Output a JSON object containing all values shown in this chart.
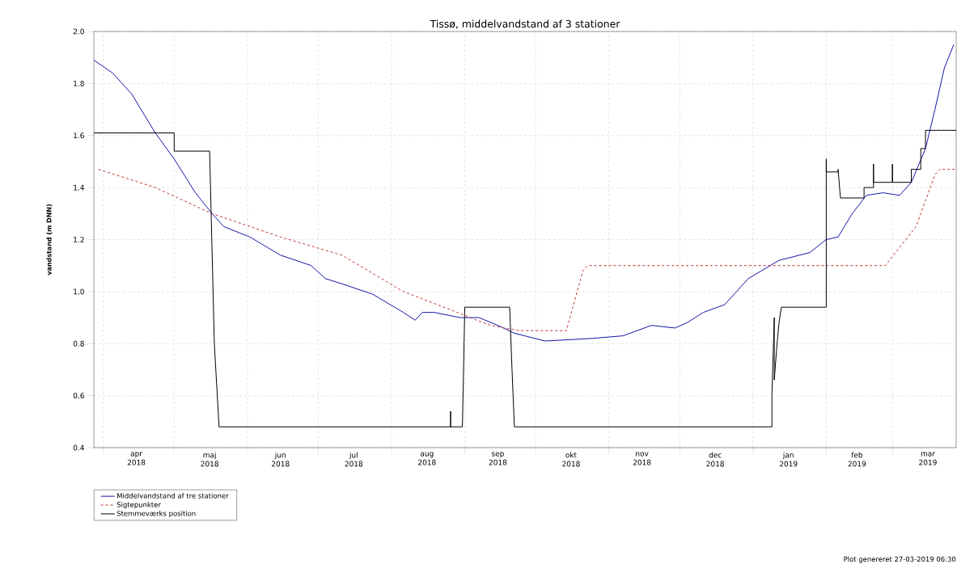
{
  "chart_data": {
    "type": "line",
    "title": "Tissø, middelvandstand af 3 stationer",
    "ylabel": "vandstand (m DNN)",
    "annotations": [
      "Plot genereret 27-03-2019 06:30"
    ],
    "xlim": [
      "2018-03-28",
      "2019-03-28"
    ],
    "xticks": [
      {
        "value": "2018-04-01",
        "label": null
      },
      {
        "value": "2018-04-15",
        "label": "apr 2018"
      },
      {
        "value": "2018-05-01",
        "label": null
      },
      {
        "value": "2018-05-16",
        "label": "maj 2018"
      },
      {
        "value": "2018-06-01",
        "label": null
      },
      {
        "value": "2018-06-15",
        "label": "jun 2018"
      },
      {
        "value": "2018-07-01",
        "label": null
      },
      {
        "value": "2018-07-16",
        "label": "jul 2018"
      },
      {
        "value": "2018-08-01",
        "label": null
      },
      {
        "value": "2018-08-16",
        "label": "aug 2018"
      },
      {
        "value": "2018-09-01",
        "label": null
      },
      {
        "value": "2018-09-15",
        "label": "sep 2018"
      },
      {
        "value": "2018-10-01",
        "label": null
      },
      {
        "value": "2018-10-16",
        "label": "okt 2018"
      },
      {
        "value": "2018-11-01",
        "label": null
      },
      {
        "value": "2018-11-15",
        "label": "nov 2018"
      },
      {
        "value": "2018-12-01",
        "label": null
      },
      {
        "value": "2018-12-16",
        "label": "dec 2018"
      },
      {
        "value": "2019-01-01",
        "label": null
      },
      {
        "value": "2019-01-16",
        "label": "jan 2019"
      },
      {
        "value": "2019-02-01",
        "label": null
      },
      {
        "value": "2019-02-14",
        "label": "feb 2019"
      },
      {
        "value": "2019-03-01",
        "label": null
      },
      {
        "value": "2019-03-16",
        "label": "mar 2019"
      }
    ],
    "ylim": [
      0.4,
      2.0
    ],
    "yticks": [
      0.4,
      0.6,
      0.8,
      {
        "value": 1,
        "label": "1.0"
      },
      1.2,
      1.4,
      1.6,
      1.8,
      {
        "value": 2,
        "label": "2.0"
      }
    ],
    "grid": true,
    "legend": "bottom",
    "series": [
      {
        "name": "Middelvandstand af tre stationer",
        "color": "#1414aa",
        "line_style": "solid",
        "x": [
          "2018-03-28",
          "2018-04-05",
          "2018-04-13",
          "2018-04-23",
          "2018-05-01",
          "2018-05-10",
          "2018-05-17",
          "2018-05-22",
          "2018-06-02",
          "2018-06-15",
          "2018-06-28",
          "2018-07-04",
          "2018-07-11",
          "2018-07-24",
          "2018-08-06",
          "2018-08-11",
          "2018-08-14",
          "2018-08-19",
          "2018-08-30",
          "2018-09-07",
          "2018-09-15",
          "2018-09-22",
          "2018-10-05",
          "2018-10-25",
          "2018-11-07",
          "2018-11-19",
          "2018-11-29",
          "2018-12-04",
          "2018-12-11",
          "2018-12-20",
          "2018-12-30",
          "2019-01-12",
          "2019-01-25",
          "2019-02-01",
          "2019-02-06",
          "2019-02-12",
          "2019-02-18",
          "2019-02-25",
          "2019-03-04",
          "2019-03-09",
          "2019-03-15",
          "2019-03-19",
          "2019-03-23",
          "2019-03-27"
        ],
        "values": [
          1.89,
          1.84,
          1.76,
          1.61,
          1.51,
          1.38,
          1.3,
          1.25,
          1.21,
          1.14,
          1.1,
          1.05,
          1.03,
          0.99,
          0.92,
          0.89,
          0.92,
          0.92,
          0.9,
          0.9,
          0.87,
          0.84,
          0.81,
          0.82,
          0.83,
          0.87,
          0.86,
          0.88,
          0.92,
          0.95,
          1.05,
          1.12,
          1.15,
          1.2,
          1.21,
          1.3,
          1.37,
          1.38,
          1.37,
          1.42,
          1.55,
          1.7,
          1.86,
          1.95
        ]
      },
      {
        "name": "Sigtepunkter",
        "color": "#c03030",
        "line_style": "dashed",
        "x": [
          "2018-03-30",
          "2018-04-23",
          "2018-05-17",
          "2018-06-15",
          "2018-07-11",
          "2018-08-06",
          "2018-08-26",
          "2018-09-06",
          "2018-09-12",
          "2018-09-24",
          "2018-10-14",
          "2018-10-21",
          "2018-10-23",
          "2019-02-26",
          "2019-03-11",
          "2019-03-19",
          "2019-03-21",
          "2019-03-28"
        ],
        "values": [
          1.47,
          1.4,
          1.3,
          1.21,
          1.14,
          1.0,
          0.93,
          0.89,
          0.87,
          0.85,
          0.85,
          1.08,
          1.1,
          1.1,
          1.25,
          1.45,
          1.47,
          1.47
        ]
      },
      {
        "name": "Stemmeværks position",
        "color": "#000000",
        "line_style": "solid",
        "x": [
          "2018-03-28",
          "2018-05-01",
          "2018-05-01",
          "2018-05-16",
          "2018-05-17",
          "2018-05-18",
          "2018-05-20",
          "2018-08-26",
          "2018-08-26",
          "2018-08-26",
          "2018-08-31",
          "2018-09-01",
          "2018-09-20",
          "2018-09-21",
          "2018-09-22",
          "2019-01-09",
          "2019-01-09",
          "2019-01-10",
          "2019-01-10",
          "2019-01-11",
          "2019-01-12",
          "2019-01-13",
          "2019-02-01",
          "2019-02-01",
          "2019-02-01",
          "2019-02-06",
          "2019-02-06",
          "2019-02-07",
          "2019-02-17",
          "2019-02-17",
          "2019-02-21",
          "2019-02-21",
          "2019-02-21",
          "2019-03-01",
          "2019-03-01",
          "2019-03-01",
          "2019-03-09",
          "2019-03-09",
          "2019-03-13",
          "2019-03-13",
          "2019-03-15",
          "2019-03-15",
          "2019-03-28"
        ],
        "values": [
          1.61,
          1.61,
          1.54,
          1.54,
          1.17,
          0.8,
          0.48,
          0.48,
          0.54,
          0.48,
          0.48,
          0.94,
          0.94,
          0.7,
          0.48,
          0.48,
          0.6,
          0.9,
          0.66,
          0.78,
          0.88,
          0.94,
          0.94,
          1.51,
          1.46,
          1.46,
          1.47,
          1.36,
          1.36,
          1.4,
          1.4,
          1.49,
          1.42,
          1.42,
          1.49,
          1.42,
          1.42,
          1.47,
          1.47,
          1.55,
          1.55,
          1.62,
          1.62
        ]
      }
    ]
  }
}
